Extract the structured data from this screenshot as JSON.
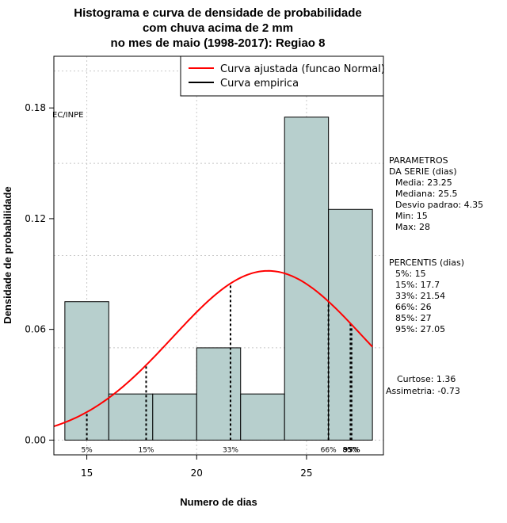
{
  "chart_data": {
    "type": "bar",
    "title_lines": [
      "Histograma e curva de densidade de probabilidade",
      "com chuva acima de 2 mm",
      "no mes de maio (1998-2017): Regiao 8"
    ],
    "xlabel": "Numero de dias",
    "ylabel": "Densidade de probabilidade",
    "xlim": [
      13.5,
      28.5
    ],
    "ylim": [
      -0.008,
      0.208
    ],
    "x_ticks": [
      15,
      20,
      25
    ],
    "y_ticks": [
      0.0,
      0.06,
      0.12,
      0.18
    ],
    "y_tick_labels": [
      "0.00",
      "0.06",
      "0.12",
      "0.18"
    ],
    "bins": [
      {
        "from": 14,
        "to": 16,
        "density": 0.075
      },
      {
        "from": 16,
        "to": 18,
        "density": 0.025
      },
      {
        "from": 18,
        "to": 20,
        "density": 0.025
      },
      {
        "from": 20,
        "to": 22,
        "density": 0.05
      },
      {
        "from": 22,
        "to": 24,
        "density": 0.025
      },
      {
        "from": 24,
        "to": 26,
        "density": 0.175
      },
      {
        "from": 26,
        "to": 28,
        "density": 0.125
      }
    ],
    "bar_color": "#b7cfcd",
    "normal_curve": {
      "mean": 23.25,
      "sd": 4.35,
      "x_from": 13.5,
      "x_to": 28,
      "color": "#ff0000"
    },
    "percentile_lines": [
      {
        "label": "5%",
        "x": 15
      },
      {
        "label": "15%",
        "x": 17.7
      },
      {
        "label": "33%",
        "x": 21.54
      },
      {
        "label": "66%",
        "x": 26
      },
      {
        "label": "85%",
        "x": 27
      },
      {
        "label": "95%",
        "x": 27.05
      }
    ],
    "legend": [
      {
        "label": "Curva ajustada (funcao Normal)",
        "color": "#ff0000"
      },
      {
        "label": "Curva empirica",
        "color": "#000000"
      }
    ],
    "watermark": "EC/INPE",
    "grid": true
  },
  "side_panel": {
    "parametros": [
      "PARAMETROS",
      "DA SERIE (dias)",
      "Media: 23.25",
      "Mediana: 25.5",
      "Desvio padrao: 4.35",
      "Min: 15",
      "Max: 28"
    ],
    "percentis": [
      "PERCENTIS (dias)",
      "5%: 15",
      "15%: 17.7",
      "33%: 21.54",
      "66%: 26",
      "85%: 27",
      "95%: 27.05"
    ],
    "curtose": "Curtose: 1.36",
    "assimetria": "Assimetria: -0.73"
  }
}
